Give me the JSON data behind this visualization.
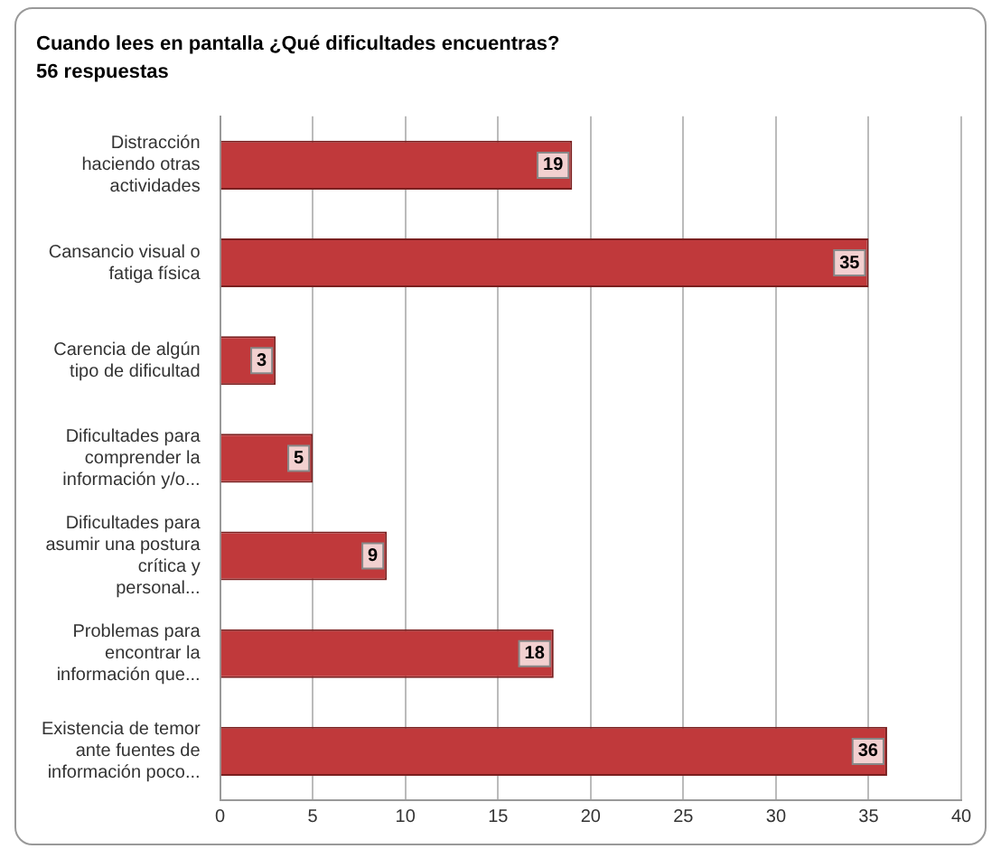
{
  "chart_data": {
    "type": "bar",
    "orientation": "horizontal",
    "title": "Cuando lees en pantalla ¿Qué dificultades encuentras?",
    "subtitle": "56 respuestas",
    "categories": [
      "Distracción haciendo otras actividades",
      "Cansancio visual o fatiga física",
      "Carencia de algún tipo de dificultad",
      "Dificultades para comprender la información y/o...",
      "Dificultades para asumir una postura crítica y personal...",
      "Problemas para encontrar la información que...",
      "Existencia de temor ante fuentes de información poco..."
    ],
    "values": [
      19,
      35,
      3,
      5,
      9,
      18,
      36
    ],
    "color": "#c0393b",
    "xlim": [
      0,
      40
    ],
    "xticks": [
      0,
      5,
      10,
      15,
      20,
      25,
      30,
      35,
      40
    ],
    "grid": "x",
    "data_labels": true,
    "legend": false
  }
}
